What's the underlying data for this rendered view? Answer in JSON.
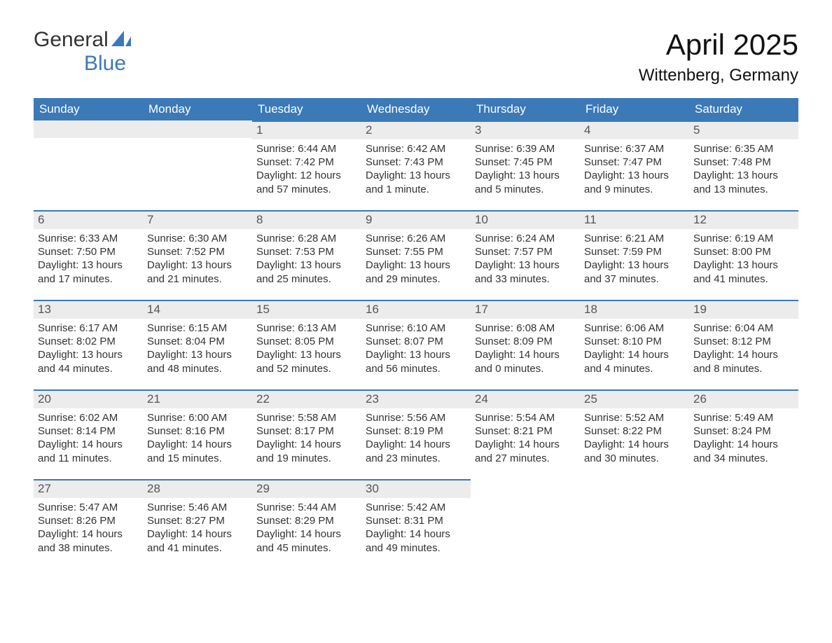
{
  "logo": {
    "text_general": "General",
    "text_blue": "Blue",
    "sail_color": "#3b79b7"
  },
  "header": {
    "month_title": "April 2025",
    "location": "Wittenberg, Germany"
  },
  "colors": {
    "header_bg": "#3b79b7",
    "header_text": "#ffffff",
    "daynum_bg": "#ececec",
    "daynum_border": "#3b79b7",
    "body_bg": "#ffffff",
    "text": "#333333"
  },
  "weekday_labels": [
    "Sunday",
    "Monday",
    "Tuesday",
    "Wednesday",
    "Thursday",
    "Friday",
    "Saturday"
  ],
  "labels": {
    "sunrise": "Sunrise:",
    "sunset": "Sunset:",
    "daylight": "Daylight:"
  },
  "weeks": [
    [
      null,
      null,
      {
        "n": "1",
        "sr": "6:44 AM",
        "ss": "7:42 PM",
        "dl": "12 hours and 57 minutes."
      },
      {
        "n": "2",
        "sr": "6:42 AM",
        "ss": "7:43 PM",
        "dl": "13 hours and 1 minute."
      },
      {
        "n": "3",
        "sr": "6:39 AM",
        "ss": "7:45 PM",
        "dl": "13 hours and 5 minutes."
      },
      {
        "n": "4",
        "sr": "6:37 AM",
        "ss": "7:47 PM",
        "dl": "13 hours and 9 minutes."
      },
      {
        "n": "5",
        "sr": "6:35 AM",
        "ss": "7:48 PM",
        "dl": "13 hours and 13 minutes."
      }
    ],
    [
      {
        "n": "6",
        "sr": "6:33 AM",
        "ss": "7:50 PM",
        "dl": "13 hours and 17 minutes."
      },
      {
        "n": "7",
        "sr": "6:30 AM",
        "ss": "7:52 PM",
        "dl": "13 hours and 21 minutes."
      },
      {
        "n": "8",
        "sr": "6:28 AM",
        "ss": "7:53 PM",
        "dl": "13 hours and 25 minutes."
      },
      {
        "n": "9",
        "sr": "6:26 AM",
        "ss": "7:55 PM",
        "dl": "13 hours and 29 minutes."
      },
      {
        "n": "10",
        "sr": "6:24 AM",
        "ss": "7:57 PM",
        "dl": "13 hours and 33 minutes."
      },
      {
        "n": "11",
        "sr": "6:21 AM",
        "ss": "7:59 PM",
        "dl": "13 hours and 37 minutes."
      },
      {
        "n": "12",
        "sr": "6:19 AM",
        "ss": "8:00 PM",
        "dl": "13 hours and 41 minutes."
      }
    ],
    [
      {
        "n": "13",
        "sr": "6:17 AM",
        "ss": "8:02 PM",
        "dl": "13 hours and 44 minutes."
      },
      {
        "n": "14",
        "sr": "6:15 AM",
        "ss": "8:04 PM",
        "dl": "13 hours and 48 minutes."
      },
      {
        "n": "15",
        "sr": "6:13 AM",
        "ss": "8:05 PM",
        "dl": "13 hours and 52 minutes."
      },
      {
        "n": "16",
        "sr": "6:10 AM",
        "ss": "8:07 PM",
        "dl": "13 hours and 56 minutes."
      },
      {
        "n": "17",
        "sr": "6:08 AM",
        "ss": "8:09 PM",
        "dl": "14 hours and 0 minutes."
      },
      {
        "n": "18",
        "sr": "6:06 AM",
        "ss": "8:10 PM",
        "dl": "14 hours and 4 minutes."
      },
      {
        "n": "19",
        "sr": "6:04 AM",
        "ss": "8:12 PM",
        "dl": "14 hours and 8 minutes."
      }
    ],
    [
      {
        "n": "20",
        "sr": "6:02 AM",
        "ss": "8:14 PM",
        "dl": "14 hours and 11 minutes."
      },
      {
        "n": "21",
        "sr": "6:00 AM",
        "ss": "8:16 PM",
        "dl": "14 hours and 15 minutes."
      },
      {
        "n": "22",
        "sr": "5:58 AM",
        "ss": "8:17 PM",
        "dl": "14 hours and 19 minutes."
      },
      {
        "n": "23",
        "sr": "5:56 AM",
        "ss": "8:19 PM",
        "dl": "14 hours and 23 minutes."
      },
      {
        "n": "24",
        "sr": "5:54 AM",
        "ss": "8:21 PM",
        "dl": "14 hours and 27 minutes."
      },
      {
        "n": "25",
        "sr": "5:52 AM",
        "ss": "8:22 PM",
        "dl": "14 hours and 30 minutes."
      },
      {
        "n": "26",
        "sr": "5:49 AM",
        "ss": "8:24 PM",
        "dl": "14 hours and 34 minutes."
      }
    ],
    [
      {
        "n": "27",
        "sr": "5:47 AM",
        "ss": "8:26 PM",
        "dl": "14 hours and 38 minutes."
      },
      {
        "n": "28",
        "sr": "5:46 AM",
        "ss": "8:27 PM",
        "dl": "14 hours and 41 minutes."
      },
      {
        "n": "29",
        "sr": "5:44 AM",
        "ss": "8:29 PM",
        "dl": "14 hours and 45 minutes."
      },
      {
        "n": "30",
        "sr": "5:42 AM",
        "ss": "8:31 PM",
        "dl": "14 hours and 49 minutes."
      },
      null,
      null,
      null
    ]
  ]
}
